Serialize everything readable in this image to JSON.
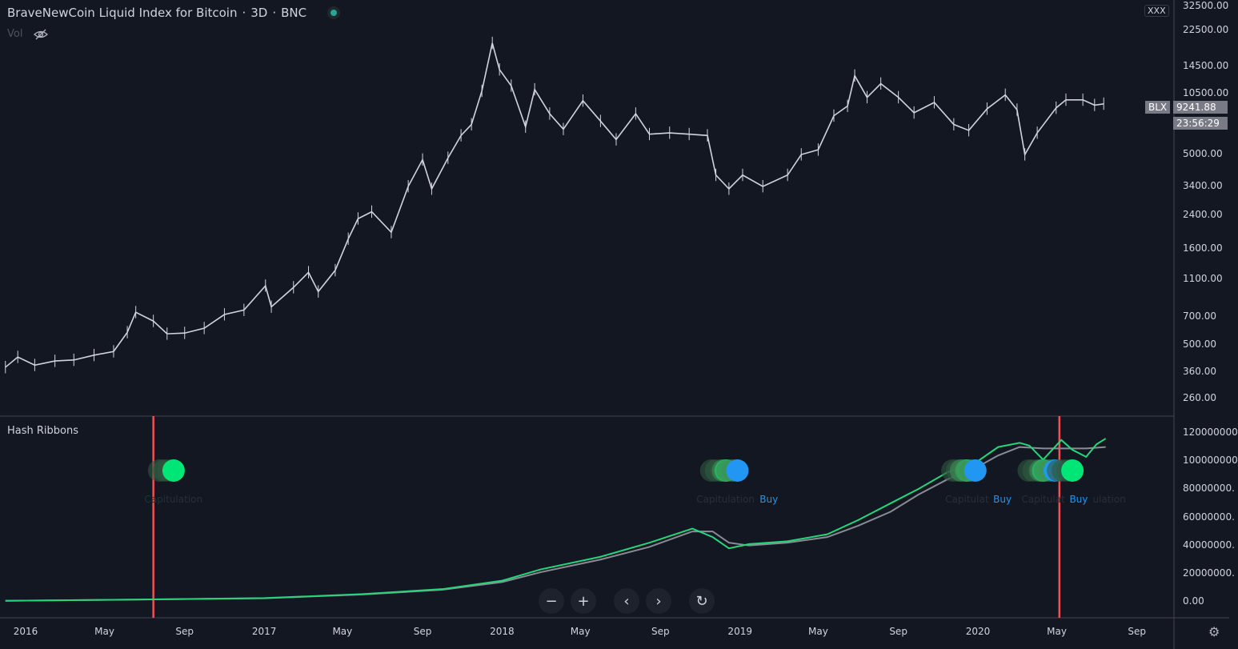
{
  "header": {
    "title": "BraveNewCoin Liquid Index for Bitcoin",
    "interval": "3D",
    "exchange": "BNC",
    "separator": "·",
    "vol_label": "Vol",
    "status_color": "#26a69a"
  },
  "price_axis": {
    "labels": [
      "32500.00",
      "22500.00",
      "14500.00",
      "10500.00",
      "5000.00",
      "3400.00",
      "2400.00",
      "1600.00",
      "1100.00",
      "700.00",
      "500.00",
      "360.00",
      "260.00"
    ],
    "values": [
      32500,
      22500,
      14500,
      10500,
      5000,
      3400,
      2400,
      1600,
      1100,
      700,
      500,
      360,
      260
    ],
    "scale": "log",
    "currency_button": "XXX"
  },
  "last_price": {
    "symbol": "BLX",
    "value": "9241.88",
    "countdown": "23:56:29"
  },
  "indicator": {
    "title": "Hash Ribbons",
    "axis_labels": [
      "120000000",
      "100000000",
      "80000000.",
      "60000000.",
      "40000000.",
      "20000000.",
      "0.00"
    ],
    "axis_values": [
      120000000,
      100000000,
      80000000,
      60000000,
      40000000,
      20000000,
      0
    ]
  },
  "time_axis": {
    "labels": [
      "2016",
      "May",
      "Sep",
      "2017",
      "May",
      "Sep",
      "2018",
      "May",
      "Sep",
      "2019",
      "May",
      "Sep",
      "2020",
      "May",
      "Sep"
    ],
    "dates": [
      "2016-01-01",
      "2016-05-01",
      "2016-09-01",
      "2017-01-01",
      "2017-05-01",
      "2017-09-01",
      "2018-01-01",
      "2018-05-01",
      "2018-09-01",
      "2019-01-01",
      "2019-05-01",
      "2019-09-01",
      "2020-01-01",
      "2020-05-01",
      "2020-09-01"
    ]
  },
  "chart_data": {
    "type": "line",
    "price_series": [
      [
        "2015-12-01",
        380
      ],
      [
        "2015-12-20",
        430
      ],
      [
        "2016-01-15",
        390
      ],
      [
        "2016-02-15",
        410
      ],
      [
        "2016-03-15",
        415
      ],
      [
        "2016-04-15",
        440
      ],
      [
        "2016-05-15",
        460
      ],
      [
        "2016-06-05",
        580
      ],
      [
        "2016-06-18",
        740
      ],
      [
        "2016-07-15",
        665
      ],
      [
        "2016-08-05",
        570
      ],
      [
        "2016-09-01",
        575
      ],
      [
        "2016-10-01",
        610
      ],
      [
        "2016-11-01",
        720
      ],
      [
        "2016-12-01",
        760
      ],
      [
        "2017-01-03",
        1020
      ],
      [
        "2017-01-12",
        790
      ],
      [
        "2017-02-15",
        1000
      ],
      [
        "2017-03-10",
        1200
      ],
      [
        "2017-03-25",
        950
      ],
      [
        "2017-04-20",
        1230
      ],
      [
        "2017-05-10",
        1800
      ],
      [
        "2017-05-25",
        2300
      ],
      [
        "2017-06-15",
        2500
      ],
      [
        "2017-07-15",
        1950
      ],
      [
        "2017-08-10",
        3400
      ],
      [
        "2017-09-01",
        4700
      ],
      [
        "2017-09-15",
        3300
      ],
      [
        "2017-10-10",
        4800
      ],
      [
        "2017-10-30",
        6300
      ],
      [
        "2017-11-15",
        7200
      ],
      [
        "2017-12-01",
        10800
      ],
      [
        "2017-12-17",
        19300
      ],
      [
        "2017-12-28",
        14000
      ],
      [
        "2018-01-15",
        11500
      ],
      [
        "2018-02-06",
        7000
      ],
      [
        "2018-02-20",
        11000
      ],
      [
        "2018-03-15",
        8200
      ],
      [
        "2018-04-05",
        6800
      ],
      [
        "2018-05-05",
        9600
      ],
      [
        "2018-06-01",
        7500
      ],
      [
        "2018-06-25",
        6000
      ],
      [
        "2018-07-25",
        8200
      ],
      [
        "2018-08-15",
        6400
      ],
      [
        "2018-09-15",
        6500
      ],
      [
        "2018-10-15",
        6400
      ],
      [
        "2018-11-12",
        6300
      ],
      [
        "2018-11-25",
        3900
      ],
      [
        "2018-12-15",
        3300
      ],
      [
        "2019-01-05",
        3900
      ],
      [
        "2019-02-05",
        3400
      ],
      [
        "2019-03-15",
        3900
      ],
      [
        "2019-04-05",
        5000
      ],
      [
        "2019-05-01",
        5300
      ],
      [
        "2019-05-25",
        8000
      ],
      [
        "2019-06-15",
        9000
      ],
      [
        "2019-06-26",
        13000
      ],
      [
        "2019-07-15",
        10000
      ],
      [
        "2019-08-05",
        11800
      ],
      [
        "2019-09-01",
        10000
      ],
      [
        "2019-09-25",
        8300
      ],
      [
        "2019-10-26",
        9400
      ],
      [
        "2019-11-25",
        7200
      ],
      [
        "2019-12-18",
        6700
      ],
      [
        "2020-01-15",
        8700
      ],
      [
        "2020-02-12",
        10300
      ],
      [
        "2020-03-01",
        8600
      ],
      [
        "2020-03-13",
        5000
      ],
      [
        "2020-04-01",
        6500
      ],
      [
        "2020-04-30",
        8800
      ],
      [
        "2020-05-15",
        9700
      ],
      [
        "2020-06-10",
        9700
      ],
      [
        "2020-06-28",
        9100
      ],
      [
        "2020-07-12",
        9241.88
      ]
    ],
    "hash_fast": [
      [
        "2015-12-01",
        700000
      ],
      [
        "2016-06-01",
        1500000
      ],
      [
        "2017-01-01",
        2600000
      ],
      [
        "2017-06-01",
        5500000
      ],
      [
        "2017-10-01",
        9000000
      ],
      [
        "2018-01-01",
        15000000
      ],
      [
        "2018-03-01",
        23000000
      ],
      [
        "2018-06-01",
        32000000
      ],
      [
        "2018-08-15",
        42000000
      ],
      [
        "2018-10-20",
        52000000
      ],
      [
        "2018-11-20",
        46000000
      ],
      [
        "2018-12-15",
        38000000
      ],
      [
        "2019-01-15",
        41000000
      ],
      [
        "2019-03-15",
        43000000
      ],
      [
        "2019-05-15",
        48000000
      ],
      [
        "2019-07-01",
        58000000
      ],
      [
        "2019-08-20",
        70000000
      ],
      [
        "2019-10-01",
        80000000
      ],
      [
        "2019-11-15",
        92000000
      ],
      [
        "2020-01-01",
        100000000
      ],
      [
        "2020-02-01",
        110000000
      ],
      [
        "2020-03-05",
        113000000
      ],
      [
        "2020-03-20",
        111000000
      ],
      [
        "2020-04-10",
        101000000
      ],
      [
        "2020-05-08",
        115000000
      ],
      [
        "2020-05-25",
        108000000
      ],
      [
        "2020-06-15",
        103000000
      ],
      [
        "2020-07-01",
        112000000
      ],
      [
        "2020-07-15",
        116000000
      ]
    ],
    "hash_slow": [
      [
        "2015-12-01",
        700000
      ],
      [
        "2016-06-01",
        1500000
      ],
      [
        "2017-01-01",
        2500000
      ],
      [
        "2017-06-01",
        5200000
      ],
      [
        "2017-10-01",
        8500000
      ],
      [
        "2018-01-01",
        14000000
      ],
      [
        "2018-03-01",
        21000000
      ],
      [
        "2018-06-01",
        30000000
      ],
      [
        "2018-08-15",
        39000000
      ],
      [
        "2018-10-20",
        50000000
      ],
      [
        "2018-11-20",
        50000000
      ],
      [
        "2018-12-15",
        42000000
      ],
      [
        "2019-01-15",
        40000000
      ],
      [
        "2019-03-15",
        42000000
      ],
      [
        "2019-05-15",
        46000000
      ],
      [
        "2019-07-01",
        54000000
      ],
      [
        "2019-08-20",
        64000000
      ],
      [
        "2019-10-01",
        76000000
      ],
      [
        "2019-11-15",
        87000000
      ],
      [
        "2020-01-01",
        96000000
      ],
      [
        "2020-02-01",
        104000000
      ],
      [
        "2020-03-05",
        110000000
      ],
      [
        "2020-04-10",
        109000000
      ],
      [
        "2020-05-08",
        109000000
      ],
      [
        "2020-06-15",
        109000000
      ],
      [
        "2020-07-15",
        110000000
      ]
    ],
    "vertical_markers": [
      "2016-07-15",
      "2020-05-05"
    ],
    "signals": [
      {
        "date": "2016-08-15",
        "kind": "capitulation",
        "label": "Capitulation"
      },
      {
        "date": "2018-12-10",
        "kind": "capitulation",
        "label": "Capitulation"
      },
      {
        "date": "2018-12-28",
        "kind": "buy",
        "label": "Buy"
      },
      {
        "date": "2019-12-15",
        "kind": "capitulation",
        "label": "Capitulat"
      },
      {
        "date": "2019-12-28",
        "kind": "buy",
        "label": "Buy"
      },
      {
        "date": "2020-04-10",
        "kind": "capitulation",
        "label": "Capitulat"
      },
      {
        "date": "2020-04-28",
        "kind": "buy",
        "label": "Buy"
      },
      {
        "date": "2020-05-25",
        "kind": "capitulation",
        "label": "ulation"
      }
    ],
    "colors": {
      "price": "#d1d4dc",
      "fast": "#26d67a",
      "slow": "#8a8c94",
      "negative": "#ef5350",
      "buy": "#2196f3",
      "capitulation": "#1f5c3b"
    }
  }
}
